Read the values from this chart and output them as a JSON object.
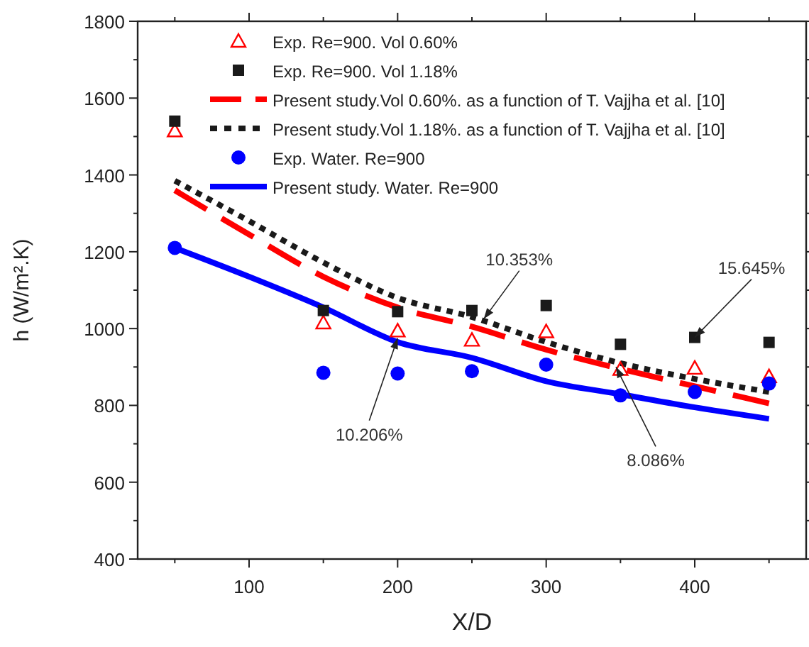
{
  "chart_data": {
    "type": "scatter",
    "xlabel": "X/D",
    "ylabel": "h (W/m².K)",
    "xlim": [
      25,
      475
    ],
    "ylim": [
      400,
      1800
    ],
    "xticks": [
      100,
      200,
      300,
      400
    ],
    "yticks": [
      400,
      600,
      800,
      1000,
      1200,
      1400,
      1600,
      1800
    ],
    "grid": false,
    "legend": "top",
    "x": [
      50,
      100,
      150,
      200,
      250,
      300,
      350,
      400,
      450
    ],
    "series": [
      {
        "name": "Exp. Re=900. Vol 0.60%",
        "marker": "triangle",
        "color": "#ff0000",
        "x": [
          50,
          150,
          200,
          250,
          300,
          350,
          400,
          450
        ],
        "values": [
          1515,
          1015,
          994,
          970,
          992,
          894,
          897,
          875
        ]
      },
      {
        "name": "Exp. Re=900. Vol 1.18%",
        "marker": "square",
        "color": "#1a1a1a",
        "x": [
          50,
          150,
          200,
          250,
          300,
          350,
          400,
          450
        ],
        "values": [
          1540,
          1047,
          1044,
          1047,
          1060,
          959,
          977,
          964
        ]
      },
      {
        "name": "Present study.Vol 0.60%. as a function of T. Vajjha et al. [10]",
        "type": "line",
        "line_style": "dashed",
        "color": "#ff0000",
        "values": [
          1360,
          1245,
          1135,
          1055,
          1005,
          945,
          895,
          850,
          805
        ]
      },
      {
        "name": "Present study.Vol 1.18%. as a function of T. Vajjha et al. [10]",
        "type": "line",
        "line_style": "dotted",
        "color": "#1a1a1a",
        "values": [
          1385,
          1280,
          1172,
          1080,
          1030,
          965,
          910,
          869,
          835
        ]
      },
      {
        "name": "Exp. Water. Re=900",
        "marker": "circle",
        "color": "#0000ff",
        "x": [
          50,
          150,
          200,
          250,
          300,
          350,
          400,
          450
        ],
        "values": [
          1210,
          885,
          883,
          889,
          906,
          826,
          835,
          857
        ]
      },
      {
        "name": "Present study. Water. Re=900",
        "type": "line",
        "line_style": "solid",
        "color": "#0000ff",
        "values": [
          1210,
          1135,
          1055,
          965,
          924,
          863,
          829,
          795,
          765
        ]
      }
    ],
    "annotations": [
      {
        "text": "10.353%",
        "x": 258,
        "y": 1025
      },
      {
        "text": "15.645%",
        "x": 400,
        "y": 977
      },
      {
        "text": "10.206%",
        "x": 200,
        "y": 975
      },
      {
        "text": "8.086%",
        "x": 347,
        "y": 900
      }
    ]
  }
}
